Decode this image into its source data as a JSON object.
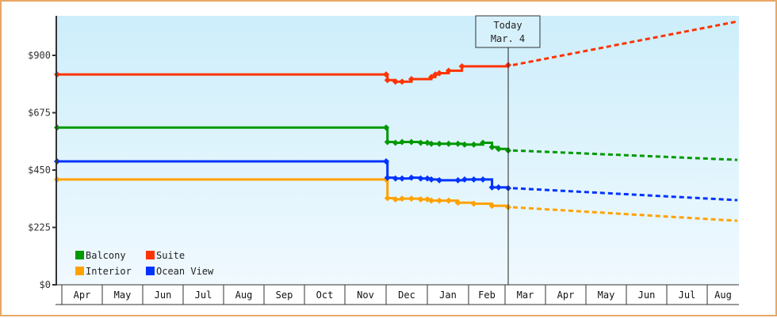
{
  "chart_data": {
    "type": "line",
    "title": "",
    "xlabel": "",
    "ylabel": "",
    "ylim": [
      0,
      1050
    ],
    "y_ticks": [
      {
        "value": 0,
        "label": "$0"
      },
      {
        "value": 225,
        "label": "$225"
      },
      {
        "value": 450,
        "label": "$450"
      },
      {
        "value": 675,
        "label": "$675"
      },
      {
        "value": 900,
        "label": "$900"
      }
    ],
    "x_ticks": [
      "Apr",
      "May",
      "Jun",
      "Jul",
      "Aug",
      "Sep",
      "Oct",
      "Nov",
      "Dec",
      "Jan",
      "Feb",
      "Mar",
      "Apr",
      "May",
      "Jun",
      "Jul",
      "Aug"
    ],
    "grid": false,
    "legend_position": "lower-left",
    "annotation": {
      "line1": "Today",
      "line2": "Mar. 4"
    },
    "series": [
      {
        "name": "Balcony",
        "color": "#009900",
        "values": [
          {
            "x": "Apr 1",
            "y": 617
          },
          {
            "x": "Dec 1",
            "y": 617
          },
          {
            "x": "Dec 2",
            "y": 560
          },
          {
            "x": "Dec 8",
            "y": 557
          },
          {
            "x": "Dec 13",
            "y": 560
          },
          {
            "x": "Dec 20",
            "y": 560
          },
          {
            "x": "Dec 27",
            "y": 557
          },
          {
            "x": "Jan 1",
            "y": 557
          },
          {
            "x": "Jan 4",
            "y": 553
          },
          {
            "x": "Jan 10",
            "y": 553
          },
          {
            "x": "Jan 17",
            "y": 553
          },
          {
            "x": "Jan 24",
            "y": 553
          },
          {
            "x": "Jan 29",
            "y": 550
          },
          {
            "x": "Feb 5",
            "y": 550
          },
          {
            "x": "Feb 12",
            "y": 557
          },
          {
            "x": "Feb 19",
            "y": 540
          },
          {
            "x": "Feb 24",
            "y": 533
          },
          {
            "x": "Mar 4",
            "y": 527
          }
        ],
        "forecast": [
          {
            "x": "Mar 4",
            "y": 527
          },
          {
            "x": "Aug 31",
            "y": 490
          }
        ]
      },
      {
        "name": "Suite",
        "color": "#ff3300",
        "values": [
          {
            "x": "Apr 1",
            "y": 825
          },
          {
            "x": "Dec 1",
            "y": 825
          },
          {
            "x": "Dec 2",
            "y": 803
          },
          {
            "x": "Dec 8",
            "y": 797
          },
          {
            "x": "Dec 13",
            "y": 797
          },
          {
            "x": "Dec 20",
            "y": 807
          },
          {
            "x": "Jan 4",
            "y": 815
          },
          {
            "x": "Jan 7",
            "y": 825
          },
          {
            "x": "Jan 10",
            "y": 830
          },
          {
            "x": "Jan 17",
            "y": 840
          },
          {
            "x": "Jan 27",
            "y": 857
          },
          {
            "x": "Mar 4",
            "y": 862
          }
        ],
        "forecast": [
          {
            "x": "Mar 4",
            "y": 862
          },
          {
            "x": "Aug 31",
            "y": 1033
          }
        ]
      },
      {
        "name": "Interior",
        "color": "#ffa200",
        "values": [
          {
            "x": "Apr 1",
            "y": 413
          },
          {
            "x": "Dec 1",
            "y": 413
          },
          {
            "x": "Dec 2",
            "y": 340
          },
          {
            "x": "Dec 8",
            "y": 335
          },
          {
            "x": "Dec 13",
            "y": 338
          },
          {
            "x": "Dec 20",
            "y": 338
          },
          {
            "x": "Dec 27",
            "y": 335
          },
          {
            "x": "Jan 1",
            "y": 335
          },
          {
            "x": "Jan 4",
            "y": 330
          },
          {
            "x": "Jan 10",
            "y": 330
          },
          {
            "x": "Jan 17",
            "y": 330
          },
          {
            "x": "Jan 24",
            "y": 322
          },
          {
            "x": "Feb 5",
            "y": 318
          },
          {
            "x": "Feb 19",
            "y": 310
          },
          {
            "x": "Mar 4",
            "y": 304
          }
        ],
        "forecast": [
          {
            "x": "Mar 4",
            "y": 304
          },
          {
            "x": "Aug 31",
            "y": 251
          }
        ]
      },
      {
        "name": "Ocean View",
        "color": "#0033ff",
        "values": [
          {
            "x": "Apr 1",
            "y": 484
          },
          {
            "x": "Dec 1",
            "y": 484
          },
          {
            "x": "Dec 2",
            "y": 420
          },
          {
            "x": "Dec 8",
            "y": 417
          },
          {
            "x": "Dec 13",
            "y": 417
          },
          {
            "x": "Dec 20",
            "y": 420
          },
          {
            "x": "Dec 27",
            "y": 417
          },
          {
            "x": "Jan 1",
            "y": 417
          },
          {
            "x": "Jan 4",
            "y": 413
          },
          {
            "x": "Jan 10",
            "y": 410
          },
          {
            "x": "Jan 24",
            "y": 410
          },
          {
            "x": "Jan 29",
            "y": 413
          },
          {
            "x": "Feb 5",
            "y": 413
          },
          {
            "x": "Feb 12",
            "y": 413
          },
          {
            "x": "Feb 19",
            "y": 382
          },
          {
            "x": "Feb 24",
            "y": 382
          },
          {
            "x": "Mar 4",
            "y": 379
          }
        ],
        "forecast": [
          {
            "x": "Mar 4",
            "y": 379
          },
          {
            "x": "Aug 31",
            "y": 332
          }
        ]
      }
    ]
  },
  "legend": {
    "items": [
      {
        "label": "Balcony",
        "color": "#009900"
      },
      {
        "label": "Suite",
        "color": "#ff3300"
      },
      {
        "label": "Interior",
        "color": "#ffa200"
      },
      {
        "label": "Ocean View",
        "color": "#0033ff"
      }
    ]
  },
  "colors": {
    "frame_border": "#e8a866",
    "plot_bg_top": "#cdeefb",
    "plot_bg_bottom": "#f0f9fe",
    "axis": "#333333"
  }
}
